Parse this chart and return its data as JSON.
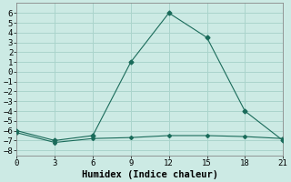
{
  "xlabel": "Humidex (Indice chaleur)",
  "background_color": "#cceae4",
  "grid_color": "#aad4cc",
  "line_color": "#1a6b5a",
  "x_main": [
    0,
    3,
    6,
    9,
    12,
    15,
    18,
    21
  ],
  "y_main": [
    -6,
    -7,
    -6.5,
    1,
    6,
    3.5,
    -4,
    -7
  ],
  "x_flat": [
    0,
    3,
    6,
    9,
    12,
    15,
    18,
    21
  ],
  "y_flat": [
    -6.2,
    -7.2,
    -6.8,
    -6.7,
    -6.5,
    -6.5,
    -6.6,
    -6.8
  ],
  "xlim": [
    0,
    21
  ],
  "ylim": [
    -8.5,
    7
  ],
  "xticks": [
    0,
    3,
    6,
    9,
    12,
    15,
    18,
    21
  ],
  "yticks": [
    -8,
    -7,
    -6,
    -5,
    -4,
    -3,
    -2,
    -1,
    0,
    1,
    2,
    3,
    4,
    5,
    6
  ],
  "tick_fontsize": 6.5,
  "xlabel_fontsize": 7.5
}
